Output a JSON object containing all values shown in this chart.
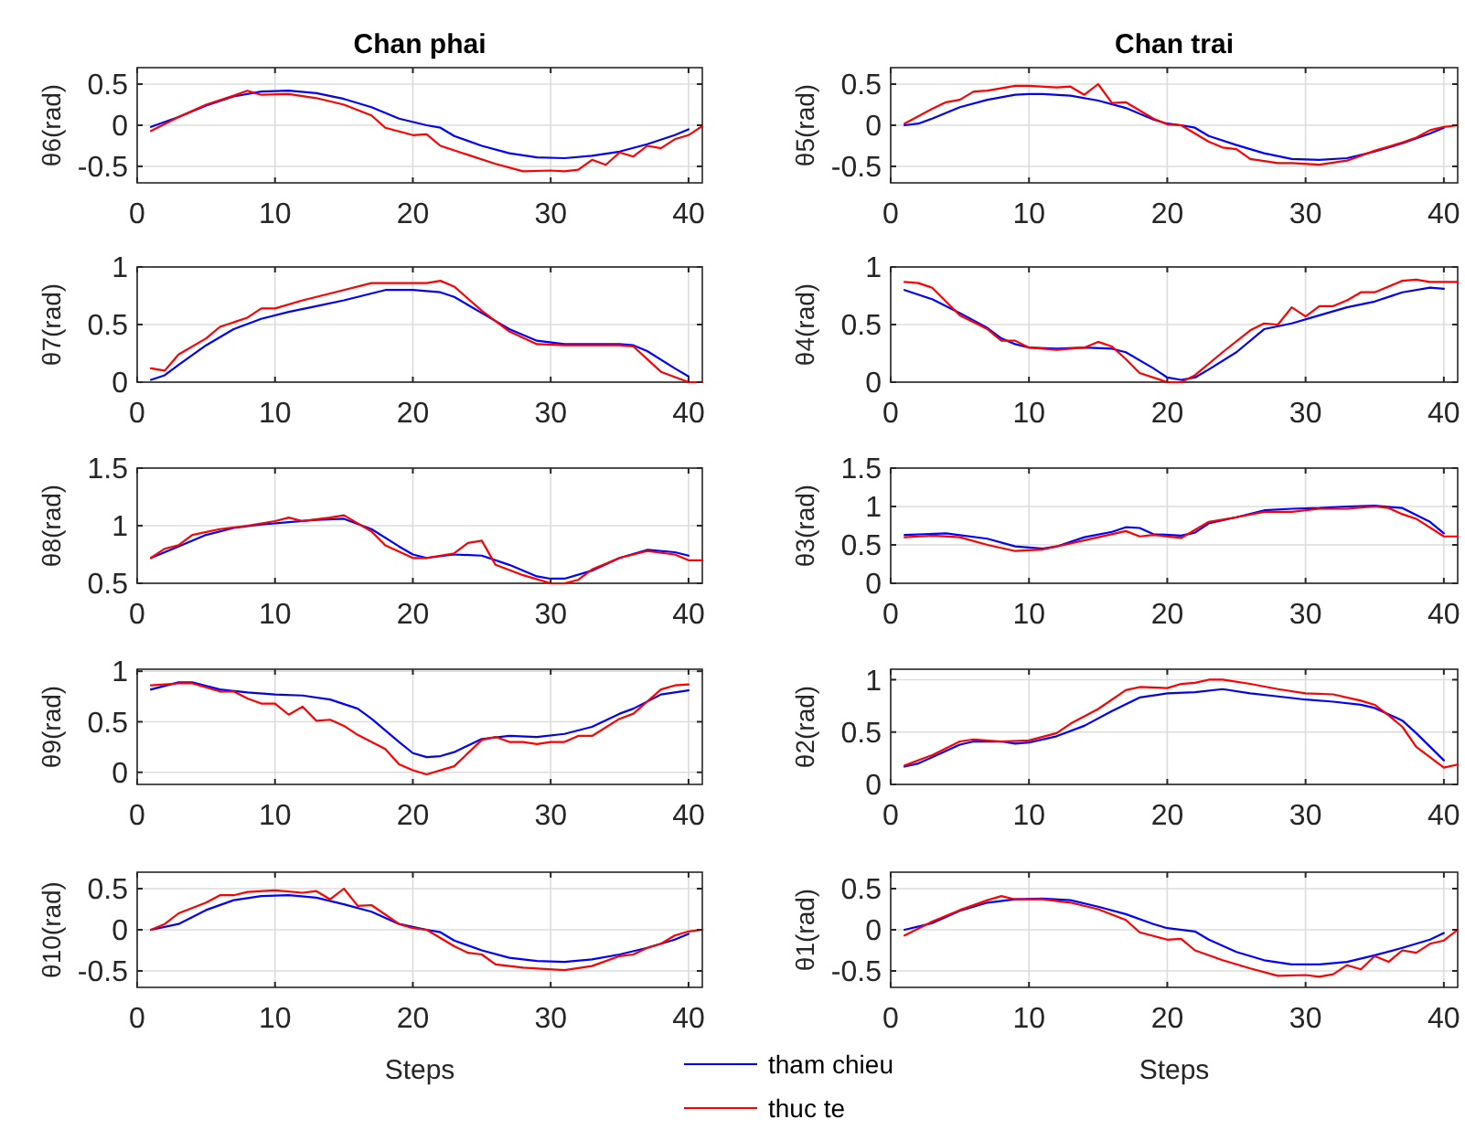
{
  "chart_data": [
    {
      "type": "line",
      "title": "Chan phai",
      "ylabel": "θ6(rad)",
      "xlim": [
        0,
        41
      ],
      "xticks": [
        0,
        10,
        20,
        30,
        40
      ],
      "ylim": [
        -0.7,
        0.7
      ],
      "yticks": [
        -0.5,
        0,
        0.5
      ],
      "grid": true,
      "series": [
        {
          "color": "#0000ff",
          "x": [
            1,
            3,
            5,
            7,
            9,
            11,
            13,
            15,
            17,
            19,
            21,
            22,
            23,
            25,
            27,
            29,
            31,
            33,
            35,
            37,
            39,
            40
          ],
          "values": [
            -0.02,
            0.1,
            0.24,
            0.35,
            0.41,
            0.42,
            0.39,
            0.32,
            0.22,
            0.08,
            0.0,
            -0.03,
            -0.13,
            -0.25,
            -0.34,
            -0.39,
            -0.4,
            -0.37,
            -0.32,
            -0.23,
            -0.12,
            -0.05
          ]
        },
        {
          "color": "#ff0000",
          "x": [
            1,
            3,
            5,
            7,
            8,
            9,
            11,
            13,
            15,
            17,
            18,
            20,
            21,
            22,
            24,
            26,
            28,
            30,
            31,
            32,
            33,
            34,
            35,
            36,
            37,
            38,
            39,
            40,
            41
          ],
          "values": [
            -0.07,
            0.1,
            0.25,
            0.36,
            0.42,
            0.37,
            0.38,
            0.33,
            0.25,
            0.12,
            -0.03,
            -0.12,
            -0.11,
            -0.25,
            -0.36,
            -0.47,
            -0.56,
            -0.55,
            -0.56,
            -0.54,
            -0.42,
            -0.48,
            -0.33,
            -0.38,
            -0.25,
            -0.28,
            -0.17,
            -0.12,
            -0.01
          ]
        }
      ]
    },
    {
      "type": "line",
      "title": "Chan trai",
      "ylabel": "θ5(rad)",
      "xlim": [
        0,
        41
      ],
      "xticks": [
        0,
        10,
        20,
        30,
        40
      ],
      "ylim": [
        -0.7,
        0.7
      ],
      "yticks": [
        -0.5,
        0,
        0.5
      ],
      "grid": true,
      "series": [
        {
          "color": "#0000ff",
          "x": [
            1,
            2,
            3,
            5,
            7,
            9,
            10,
            11,
            13,
            15,
            17,
            19,
            20,
            21,
            22,
            23,
            25,
            27,
            29,
            31,
            33,
            35,
            37,
            39,
            40
          ],
          "values": [
            0.0,
            0.02,
            0.08,
            0.22,
            0.31,
            0.37,
            0.38,
            0.38,
            0.36,
            0.3,
            0.21,
            0.07,
            0.02,
            0.0,
            -0.03,
            -0.13,
            -0.24,
            -0.34,
            -0.41,
            -0.42,
            -0.4,
            -0.32,
            -0.22,
            -0.1,
            -0.03
          ]
        },
        {
          "color": "#ff0000",
          "x": [
            1,
            3,
            4,
            5,
            6,
            7,
            9,
            10,
            12,
            13,
            14,
            15,
            16,
            17,
            19,
            20,
            21,
            23,
            24,
            25,
            26,
            28,
            29,
            31,
            33,
            35,
            37,
            38,
            39,
            40,
            41
          ],
          "values": [
            0.02,
            0.2,
            0.28,
            0.31,
            0.41,
            0.42,
            0.48,
            0.48,
            0.46,
            0.47,
            0.37,
            0.5,
            0.27,
            0.28,
            0.08,
            0.01,
            0.0,
            -0.2,
            -0.27,
            -0.29,
            -0.41,
            -0.46,
            -0.46,
            -0.48,
            -0.43,
            -0.31,
            -0.21,
            -0.15,
            -0.06,
            -0.02,
            0.0
          ]
        }
      ]
    },
    {
      "type": "line",
      "ylabel": "θ7(rad)",
      "xlim": [
        0,
        41
      ],
      "xticks": [
        0,
        10,
        20,
        30,
        40
      ],
      "ylim": [
        0,
        1
      ],
      "yticks": [
        0,
        0.5,
        1
      ],
      "grid": true,
      "series": [
        {
          "color": "#0000ff",
          "x": [
            1,
            2,
            3,
            5,
            7,
            9,
            11,
            13,
            15,
            17,
            18,
            20,
            22,
            23,
            25,
            27,
            29,
            31,
            33,
            35,
            36,
            37,
            39,
            40
          ],
          "values": [
            0.02,
            0.06,
            0.15,
            0.32,
            0.46,
            0.55,
            0.61,
            0.66,
            0.71,
            0.77,
            0.8,
            0.8,
            0.78,
            0.74,
            0.6,
            0.46,
            0.36,
            0.33,
            0.33,
            0.33,
            0.32,
            0.27,
            0.12,
            0.05
          ]
        },
        {
          "color": "#ff0000",
          "x": [
            1,
            2,
            3,
            5,
            6,
            8,
            9,
            10,
            12,
            14,
            17,
            19,
            21,
            22,
            23,
            25,
            27,
            29,
            31,
            33,
            35,
            36,
            38,
            40,
            41
          ],
          "values": [
            0.12,
            0.1,
            0.24,
            0.38,
            0.48,
            0.56,
            0.64,
            0.64,
            0.71,
            0.77,
            0.86,
            0.86,
            0.86,
            0.88,
            0.83,
            0.62,
            0.44,
            0.33,
            0.32,
            0.32,
            0.32,
            0.31,
            0.09,
            0.0,
            0.0
          ]
        }
      ]
    },
    {
      "type": "line",
      "ylabel": "θ4(rad)",
      "xlim": [
        0,
        41
      ],
      "xticks": [
        0,
        10,
        20,
        30,
        40
      ],
      "ylim": [
        0,
        1
      ],
      "yticks": [
        0,
        0.5,
        1
      ],
      "grid": true,
      "series": [
        {
          "color": "#0000ff",
          "x": [
            1,
            3,
            5,
            7,
            8,
            9,
            10,
            12,
            14,
            16,
            17,
            19,
            20,
            21,
            22,
            23,
            25,
            27,
            29,
            31,
            33,
            35,
            37,
            39,
            40
          ],
          "values": [
            0.8,
            0.72,
            0.6,
            0.47,
            0.38,
            0.33,
            0.3,
            0.29,
            0.3,
            0.29,
            0.26,
            0.12,
            0.04,
            0.02,
            0.04,
            0.11,
            0.26,
            0.46,
            0.51,
            0.58,
            0.65,
            0.7,
            0.78,
            0.82,
            0.81
          ]
        },
        {
          "color": "#ff0000",
          "x": [
            1,
            2,
            3,
            5,
            7,
            8,
            9,
            10,
            12,
            14,
            15,
            16,
            17,
            18,
            20,
            21,
            22,
            24,
            26,
            27,
            28,
            29,
            30,
            31,
            32,
            33,
            34,
            35,
            37,
            38,
            39,
            41
          ],
          "values": [
            0.87,
            0.86,
            0.82,
            0.58,
            0.46,
            0.36,
            0.36,
            0.3,
            0.28,
            0.3,
            0.35,
            0.31,
            0.2,
            0.08,
            0.0,
            0.0,
            0.06,
            0.26,
            0.45,
            0.51,
            0.5,
            0.65,
            0.57,
            0.66,
            0.66,
            0.71,
            0.78,
            0.78,
            0.88,
            0.89,
            0.87,
            0.87
          ]
        }
      ]
    },
    {
      "type": "line",
      "ylabel": "θ8(rad)",
      "xlim": [
        0,
        41
      ],
      "xticks": [
        0,
        10,
        20,
        30,
        40
      ],
      "ylim": [
        0.5,
        1.5
      ],
      "yticks": [
        0.5,
        1,
        1.5
      ],
      "grid": true,
      "series": [
        {
          "color": "#0000ff",
          "x": [
            1,
            3,
            5,
            7,
            9,
            11,
            13,
            15,
            17,
            19,
            20,
            21,
            23,
            25,
            27,
            29,
            30,
            31,
            33,
            35,
            37,
            39,
            40
          ],
          "values": [
            0.72,
            0.82,
            0.92,
            0.98,
            1.01,
            1.03,
            1.05,
            1.06,
            0.97,
            0.82,
            0.75,
            0.72,
            0.75,
            0.74,
            0.66,
            0.56,
            0.54,
            0.54,
            0.61,
            0.72,
            0.79,
            0.77,
            0.74
          ]
        },
        {
          "color": "#ff0000",
          "x": [
            1,
            2,
            3,
            4,
            6,
            8,
            10,
            11,
            12,
            14,
            15,
            17,
            18,
            20,
            21,
            23,
            24,
            25,
            26,
            28,
            30,
            31,
            32,
            33,
            35,
            37,
            39,
            40,
            41
          ],
          "values": [
            0.72,
            0.8,
            0.83,
            0.92,
            0.97,
            1.0,
            1.04,
            1.07,
            1.04,
            1.07,
            1.09,
            0.95,
            0.83,
            0.72,
            0.72,
            0.76,
            0.85,
            0.87,
            0.66,
            0.57,
            0.5,
            0.5,
            0.53,
            0.62,
            0.72,
            0.78,
            0.75,
            0.7,
            0.7
          ]
        }
      ]
    },
    {
      "type": "line",
      "ylabel": "θ3(rad)",
      "xlim": [
        0,
        41
      ],
      "xticks": [
        0,
        10,
        20,
        30,
        40
      ],
      "ylim": [
        0,
        1.5
      ],
      "yticks": [
        0,
        0.5,
        1,
        1.5
      ],
      "grid": true,
      "series": [
        {
          "color": "#0000ff",
          "x": [
            1,
            4,
            7,
            9,
            11,
            12,
            14,
            16,
            17,
            18,
            19,
            21,
            22,
            23,
            25,
            27,
            29,
            31,
            33,
            35,
            37,
            39,
            40
          ],
          "values": [
            0.63,
            0.65,
            0.58,
            0.48,
            0.45,
            0.48,
            0.6,
            0.67,
            0.73,
            0.72,
            0.64,
            0.62,
            0.66,
            0.78,
            0.86,
            0.95,
            0.97,
            0.98,
            1.0,
            1.01,
            0.98,
            0.8,
            0.65
          ]
        },
        {
          "color": "#ff0000",
          "x": [
            1,
            3,
            5,
            7,
            9,
            11,
            13,
            15,
            17,
            18,
            19,
            21,
            23,
            25,
            27,
            29,
            31,
            33,
            35,
            36,
            37,
            38,
            40,
            41
          ],
          "values": [
            0.6,
            0.62,
            0.6,
            0.5,
            0.42,
            0.44,
            0.52,
            0.6,
            0.68,
            0.61,
            0.63,
            0.59,
            0.8,
            0.86,
            0.93,
            0.93,
            0.97,
            0.97,
            1.0,
            0.98,
            0.9,
            0.84,
            0.61,
            0.61
          ]
        }
      ]
    },
    {
      "type": "line",
      "ylabel": "θ9(rad)",
      "xlim": [
        0,
        41
      ],
      "xticks": [
        0,
        10,
        20,
        30,
        40
      ],
      "ylim": [
        -0.12,
        1.02
      ],
      "yticks": [
        0,
        0.5,
        1
      ],
      "grid": true,
      "series": [
        {
          "color": "#0000ff",
          "x": [
            1,
            3,
            4,
            6,
            8,
            10,
            12,
            14,
            16,
            17,
            19,
            20,
            21,
            22,
            23,
            25,
            27,
            29,
            31,
            33,
            35,
            36,
            38,
            40
          ],
          "values": [
            0.82,
            0.89,
            0.89,
            0.82,
            0.79,
            0.77,
            0.76,
            0.72,
            0.63,
            0.53,
            0.3,
            0.19,
            0.15,
            0.16,
            0.2,
            0.33,
            0.36,
            0.35,
            0.38,
            0.45,
            0.58,
            0.63,
            0.77,
            0.81
          ]
        },
        {
          "color": "#ff0000",
          "x": [
            1,
            3,
            4,
            6,
            7,
            8,
            9,
            10,
            11,
            12,
            13,
            14,
            15,
            16,
            18,
            19,
            20,
            21,
            23,
            25,
            26,
            27,
            28,
            29,
            30,
            31,
            32,
            33,
            35,
            36,
            38,
            39,
            40
          ],
          "values": [
            0.86,
            0.88,
            0.88,
            0.8,
            0.8,
            0.73,
            0.68,
            0.68,
            0.57,
            0.65,
            0.51,
            0.52,
            0.46,
            0.37,
            0.23,
            0.08,
            0.02,
            -0.02,
            0.06,
            0.32,
            0.35,
            0.3,
            0.3,
            0.28,
            0.3,
            0.3,
            0.36,
            0.36,
            0.53,
            0.58,
            0.82,
            0.86,
            0.87
          ]
        }
      ]
    },
    {
      "type": "line",
      "ylabel": "θ2(rad)",
      "xlim": [
        0,
        41
      ],
      "xticks": [
        0,
        10,
        20,
        30,
        40
      ],
      "ylim": [
        0,
        1.1
      ],
      "yticks": [
        0,
        0.5,
        1
      ],
      "grid": true,
      "series": [
        {
          "color": "#0000ff",
          "x": [
            1,
            2,
            5,
            6,
            8,
            9,
            10,
            12,
            14,
            16,
            18,
            20,
            22,
            24,
            26,
            28,
            30,
            32,
            34,
            35,
            37,
            38,
            40
          ],
          "values": [
            0.17,
            0.2,
            0.38,
            0.41,
            0.41,
            0.39,
            0.4,
            0.46,
            0.56,
            0.7,
            0.83,
            0.87,
            0.88,
            0.91,
            0.87,
            0.84,
            0.81,
            0.79,
            0.76,
            0.73,
            0.61,
            0.49,
            0.23
          ]
        },
        {
          "color": "#ff0000",
          "x": [
            1,
            3,
            5,
            6,
            8,
            10,
            12,
            13,
            15,
            17,
            18,
            20,
            21,
            22,
            23,
            24,
            26,
            28,
            30,
            32,
            34,
            35,
            36,
            37,
            38,
            40,
            41
          ],
          "values": [
            0.18,
            0.28,
            0.41,
            0.43,
            0.41,
            0.42,
            0.49,
            0.58,
            0.72,
            0.9,
            0.93,
            0.92,
            0.96,
            0.97,
            1.0,
            1.0,
            0.96,
            0.91,
            0.87,
            0.86,
            0.8,
            0.76,
            0.66,
            0.55,
            0.36,
            0.16,
            0.19
          ]
        }
      ]
    },
    {
      "type": "line",
      "ylabel": "θ10(rad)",
      "xlabel": "Steps",
      "xlim": [
        0,
        41
      ],
      "xticks": [
        0,
        10,
        20,
        30,
        40
      ],
      "ylim": [
        -0.7,
        0.7
      ],
      "yticks": [
        -0.5,
        0,
        0.5
      ],
      "grid": true,
      "legend": "bottom right",
      "series": [
        {
          "name": "tham chieu",
          "color": "#0000ff",
          "x": [
            1,
            3,
            5,
            7,
            9,
            11,
            13,
            15,
            17,
            19,
            21,
            22,
            23,
            25,
            27,
            29,
            31,
            33,
            35,
            37,
            39,
            40
          ],
          "values": [
            0.0,
            0.07,
            0.24,
            0.36,
            0.41,
            0.42,
            0.39,
            0.31,
            0.22,
            0.07,
            0.0,
            -0.03,
            -0.13,
            -0.25,
            -0.34,
            -0.38,
            -0.39,
            -0.36,
            -0.3,
            -0.22,
            -0.12,
            -0.05
          ]
        },
        {
          "name": "thuc te",
          "color": "#ff0000",
          "x": [
            1,
            2,
            3,
            5,
            6,
            7,
            8,
            10,
            12,
            13,
            14,
            15,
            16,
            17,
            19,
            20,
            21,
            23,
            24,
            25,
            26,
            28,
            29,
            31,
            33,
            35,
            36,
            37,
            38,
            39,
            40,
            41
          ],
          "values": [
            0.0,
            0.07,
            0.2,
            0.33,
            0.42,
            0.42,
            0.46,
            0.48,
            0.45,
            0.47,
            0.37,
            0.5,
            0.29,
            0.3,
            0.07,
            0.02,
            0.0,
            -0.2,
            -0.28,
            -0.3,
            -0.42,
            -0.46,
            -0.47,
            -0.49,
            -0.44,
            -0.32,
            -0.3,
            -0.22,
            -0.17,
            -0.07,
            -0.02,
            0.0
          ]
        }
      ]
    },
    {
      "type": "line",
      "ylabel": "θ1(rad)",
      "xlabel": "Steps",
      "xlim": [
        0,
        41
      ],
      "xticks": [
        0,
        10,
        20,
        30,
        40
      ],
      "ylim": [
        -0.7,
        0.7
      ],
      "yticks": [
        -0.5,
        0,
        0.5
      ],
      "grid": true,
      "series": [
        {
          "color": "#0000ff",
          "x": [
            1,
            3,
            5,
            7,
            9,
            11,
            13,
            15,
            17,
            19,
            20,
            22,
            23,
            25,
            27,
            29,
            31,
            33,
            35,
            37,
            39,
            40
          ],
          "values": [
            0.0,
            0.08,
            0.23,
            0.33,
            0.37,
            0.38,
            0.36,
            0.28,
            0.19,
            0.07,
            0.02,
            -0.02,
            -0.12,
            -0.27,
            -0.37,
            -0.42,
            -0.42,
            -0.39,
            -0.31,
            -0.22,
            -0.12,
            -0.04
          ]
        },
        {
          "color": "#ff0000",
          "x": [
            1,
            3,
            5,
            7,
            8,
            9,
            11,
            13,
            15,
            17,
            18,
            20,
            21,
            22,
            24,
            26,
            28,
            30,
            31,
            32,
            33,
            34,
            35,
            36,
            37,
            38,
            39,
            40,
            41
          ],
          "values": [
            -0.07,
            0.1,
            0.24,
            0.36,
            0.41,
            0.37,
            0.37,
            0.33,
            0.25,
            0.12,
            -0.03,
            -0.12,
            -0.11,
            -0.25,
            -0.37,
            -0.47,
            -0.56,
            -0.55,
            -0.57,
            -0.54,
            -0.43,
            -0.48,
            -0.32,
            -0.39,
            -0.25,
            -0.28,
            -0.17,
            -0.13,
            0.0
          ]
        }
      ]
    }
  ]
}
